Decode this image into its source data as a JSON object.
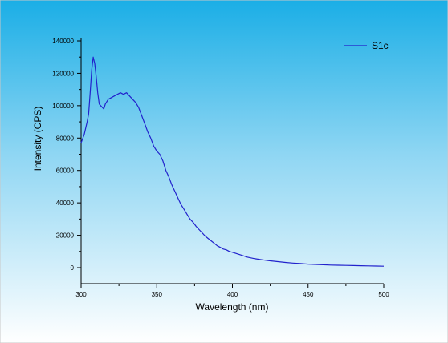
{
  "colors": {
    "background_top": "#1aaee6",
    "background_bottom": "#ffffff",
    "series": "#2222cc",
    "axis": "#000000"
  },
  "chart_data": {
    "type": "line",
    "xlabel": "Wavelength (nm)",
    "ylabel": "Intensity (CPS)",
    "xlim": [
      300,
      500
    ],
    "ylim": [
      0,
      140000
    ],
    "x_ticks": [
      300,
      350,
      400,
      450,
      500
    ],
    "y_ticks": [
      0,
      20000,
      40000,
      60000,
      80000,
      100000,
      120000,
      140000
    ],
    "x_tick_labels": [
      "300",
      "350",
      "400",
      "450",
      "500"
    ],
    "y_tick_labels": [
      "0",
      "20000",
      "40000",
      "60000",
      "80000",
      "100000",
      "120000",
      "140000"
    ],
    "grid": false,
    "legend_position": "top-right",
    "series": [
      {
        "name": "S1c",
        "x": [
          300,
          302,
          304,
          305,
          306,
          307,
          308,
          309,
          310,
          311,
          312,
          313,
          314,
          315,
          316,
          318,
          320,
          322,
          324,
          326,
          328,
          330,
          332,
          334,
          336,
          338,
          340,
          342,
          344,
          346,
          348,
          350,
          352,
          354,
          356,
          358,
          360,
          362,
          364,
          366,
          368,
          370,
          372,
          374,
          376,
          378,
          380,
          382,
          384,
          386,
          388,
          390,
          392,
          394,
          396,
          398,
          400,
          405,
          410,
          415,
          420,
          425,
          430,
          435,
          440,
          445,
          450,
          455,
          460,
          465,
          470,
          475,
          480,
          485,
          490,
          495,
          500
        ],
        "values": [
          77000,
          82000,
          90000,
          95000,
          108000,
          122000,
          130000,
          126000,
          118000,
          108000,
          101000,
          100000,
          99000,
          98000,
          101000,
          104000,
          105000,
          106000,
          107000,
          108000,
          107000,
          108000,
          106000,
          104000,
          102000,
          99000,
          94000,
          89000,
          84000,
          80000,
          75000,
          72000,
          70000,
          66000,
          60000,
          56000,
          51000,
          47000,
          43000,
          39000,
          36000,
          33000,
          30000,
          28000,
          25500,
          23500,
          21500,
          19500,
          18000,
          16500,
          15000,
          13500,
          12500,
          11500,
          11000,
          10000,
          9500,
          8000,
          6500,
          5500,
          4800,
          4200,
          3700,
          3200,
          2800,
          2500,
          2200,
          2000,
          1800,
          1600,
          1500,
          1400,
          1300,
          1200,
          1100,
          1000,
          900
        ]
      }
    ]
  }
}
